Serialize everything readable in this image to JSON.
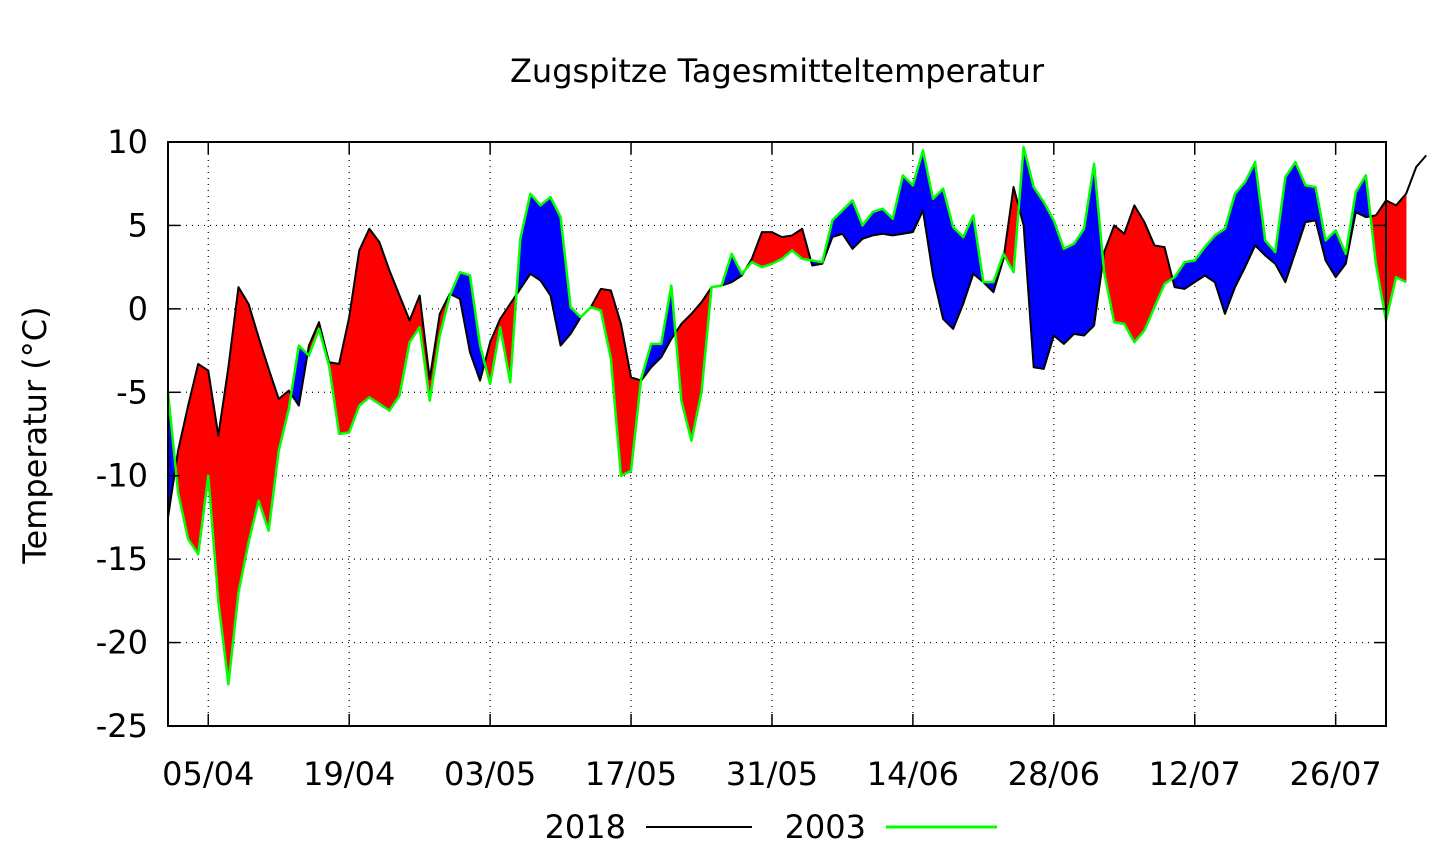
{
  "chart_data": {
    "type": "line",
    "title": "Zugspitze Tagesmitteltemperatur",
    "ylabel": "Temperatur (°C)",
    "xlabel": "",
    "ylim": [
      -25,
      10
    ],
    "yticks": [
      10,
      5,
      0,
      -5,
      -10,
      -15,
      -20,
      -25
    ],
    "x_start": "2018-04-01",
    "x_end": "2018-07-31",
    "xticks": [
      {
        "date": "2018-04-05",
        "label": "05/04"
      },
      {
        "date": "2018-04-19",
        "label": "19/04"
      },
      {
        "date": "2018-05-03",
        "label": "03/05"
      },
      {
        "date": "2018-05-17",
        "label": "17/05"
      },
      {
        "date": "2018-05-31",
        "label": "31/05"
      },
      {
        "date": "2018-06-14",
        "label": "14/06"
      },
      {
        "date": "2018-06-28",
        "label": "28/06"
      },
      {
        "date": "2018-07-12",
        "label": "12/07"
      },
      {
        "date": "2018-07-26",
        "label": "26/07"
      }
    ],
    "grid": true,
    "legend": "bottom",
    "fill_colors": {
      "above": "#ff0000",
      "below": "#0000ff"
    },
    "series": [
      {
        "name": "2018",
        "color": "#000000",
        "values": [
          -12.5,
          -8.5,
          -5.8,
          -3.3,
          -3.7,
          -7.6,
          -3.5,
          1.3,
          0.3,
          -1.7,
          -3.6,
          -5.4,
          -4.9,
          -5.8,
          -2.2,
          -0.8,
          -3.2,
          -3.3,
          -0.5,
          3.5,
          4.8,
          4.0,
          2.3,
          0.8,
          -0.7,
          0.8,
          -4.2,
          -0.3,
          0.9,
          0.6,
          -2.6,
          -4.3,
          -2.0,
          -0.6,
          0.3,
          1.2,
          2.1,
          1.7,
          0.8,
          -2.2,
          -1.5,
          -0.5,
          0.1,
          1.2,
          1.1,
          -0.9,
          -4.1,
          -4.3,
          -3.5,
          -2.9,
          -1.8,
          -0.9,
          -0.3,
          0.4,
          1.3,
          1.4,
          1.6,
          2.0,
          3.0,
          4.6,
          4.6,
          4.3,
          4.4,
          4.8,
          2.6,
          2.7,
          4.3,
          4.5,
          3.6,
          4.2,
          4.4,
          4.5,
          4.4,
          4.5,
          4.6,
          5.9,
          2.0,
          -0.6,
          -1.2,
          0.3,
          2.1,
          1.6,
          1.0,
          3.0,
          7.3,
          5.0,
          -3.5,
          -3.6,
          -1.6,
          -2.1,
          -1.5,
          -1.6,
          -1.0,
          3.4,
          5.0,
          4.5,
          6.2,
          5.2,
          3.8,
          3.7,
          1.3,
          1.2,
          1.6,
          2.0,
          1.6,
          -0.3,
          1.3,
          2.5,
          3.8,
          3.2,
          2.7,
          1.6,
          3.4,
          5.2,
          5.3,
          2.9,
          1.9,
          2.7,
          5.8,
          5.5,
          5.6,
          6.5,
          6.2,
          6.9,
          8.5,
          9.2
        ]
      },
      {
        "name": "2003",
        "color": "#00ff00",
        "values": [
          -5.0,
          -11.0,
          -13.8,
          -14.7,
          -10.0,
          -17.5,
          -22.5,
          -17.0,
          -14.0,
          -11.5,
          -13.3,
          -8.5,
          -6.0,
          -2.2,
          -2.8,
          -1.2,
          -3.4,
          -7.5,
          -7.4,
          -5.8,
          -5.3,
          -5.7,
          -6.1,
          -5.2,
          -2.0,
          -1.1,
          -5.5,
          -1.6,
          0.8,
          2.2,
          2.0,
          -2.2,
          -4.5,
          -1.1,
          -4.4,
          4.2,
          6.9,
          6.2,
          6.7,
          5.5,
          0.1,
          -0.5,
          0.1,
          -0.1,
          -3.0,
          -10.0,
          -9.7,
          -4.2,
          -2.1,
          -2.1,
          1.4,
          -5.5,
          -7.9,
          -5.0,
          1.3,
          1.4,
          3.3,
          2.1,
          2.8,
          2.5,
          2.7,
          3.0,
          3.5,
          3.0,
          2.9,
          2.8,
          5.3,
          5.9,
          6.5,
          5.0,
          5.8,
          6.0,
          5.4,
          8.0,
          7.4,
          9.5,
          6.6,
          7.2,
          4.9,
          4.3,
          5.6,
          1.6,
          1.6,
          3.3,
          2.2,
          9.7,
          7.3,
          6.4,
          5.3,
          3.6,
          3.9,
          4.8,
          8.7,
          2.2,
          -0.8,
          -0.9,
          -2.0,
          -1.3,
          0.1,
          1.5,
          1.9,
          2.8,
          2.9,
          3.7,
          4.4,
          4.8,
          6.9,
          7.6,
          8.8,
          4.1,
          3.4,
          7.9,
          8.8,
          7.4,
          7.3,
          4.1,
          4.7,
          3.3,
          7.0,
          8.0,
          2.7,
          -0.7,
          1.9,
          1.6
        ]
      }
    ]
  }
}
